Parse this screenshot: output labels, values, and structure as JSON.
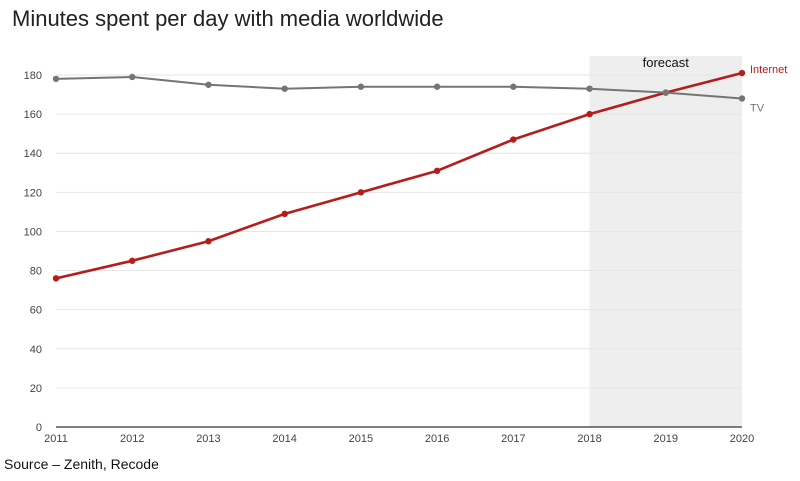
{
  "chart_data": {
    "type": "line",
    "title": "Minutes spent per day with media worldwide",
    "x": [
      2011,
      2012,
      2013,
      2014,
      2015,
      2016,
      2017,
      2018,
      2019,
      2020
    ],
    "ylim": [
      0,
      180
    ],
    "yticks": [
      0,
      20,
      40,
      60,
      80,
      100,
      120,
      140,
      160,
      180
    ],
    "grid": true,
    "series": [
      {
        "name": "Internet",
        "color": "#b71c1c",
        "values": [
          76,
          85,
          95,
          109,
          120,
          131,
          147,
          160,
          171,
          181
        ]
      },
      {
        "name": "TV",
        "color": "#757575",
        "values": [
          178,
          179,
          175,
          173,
          174,
          174,
          174,
          173,
          171,
          168
        ]
      }
    ],
    "shaded_region": {
      "label": "forecast",
      "x_start": 2018,
      "x_end": 2020,
      "color": "#eeeeee"
    },
    "source": "Source – Zenith, Recode"
  }
}
